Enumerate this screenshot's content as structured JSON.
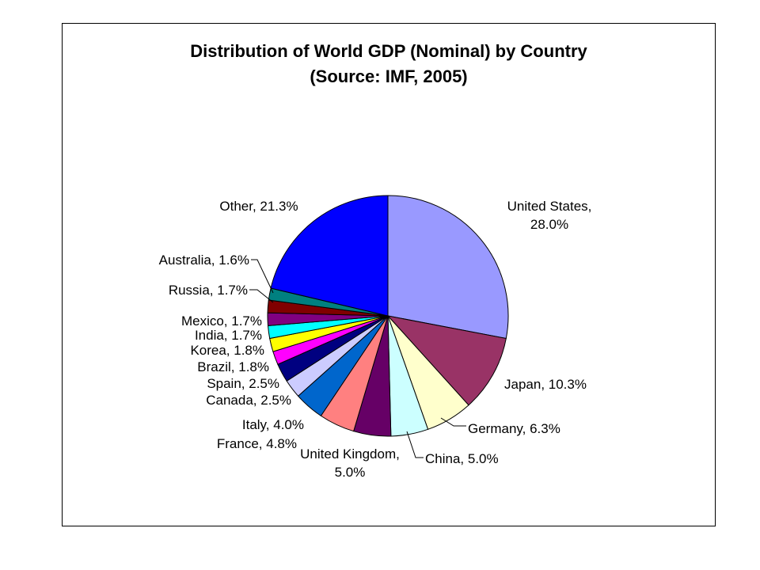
{
  "chart_data": {
    "type": "pie",
    "title": "Distribution of World GDP (Nominal) by Country",
    "subtitle": "(Source:  IMF, 2005)",
    "start_angle_deg": 0,
    "direction": "clockwise",
    "slices": [
      {
        "name": "United States",
        "value": 28.0,
        "label_lines": [
          "United States,",
          "28.0%"
        ],
        "color": "#9999ff"
      },
      {
        "name": "Japan",
        "value": 10.3,
        "label_lines": [
          "Japan, 10.3%"
        ],
        "color": "#993366"
      },
      {
        "name": "Germany",
        "value": 6.3,
        "label_lines": [
          "Germany, 6.3%"
        ],
        "color": "#ffffcc"
      },
      {
        "name": "China",
        "value": 5.0,
        "label_lines": [
          "China, 5.0%"
        ],
        "color": "#ccffff"
      },
      {
        "name": "United Kingdom",
        "value": 5.0,
        "label_lines": [
          "United Kingdom,",
          "5.0%"
        ],
        "color": "#660066"
      },
      {
        "name": "France",
        "value": 4.8,
        "label_lines": [
          "France, 4.8%"
        ],
        "color": "#ff8080"
      },
      {
        "name": "Italy",
        "value": 4.0,
        "label_lines": [
          "Italy, 4.0%"
        ],
        "color": "#0066cc"
      },
      {
        "name": "Canada",
        "value": 2.5,
        "label_lines": [
          "Canada, 2.5%"
        ],
        "color": "#ccccff"
      },
      {
        "name": "Spain",
        "value": 2.5,
        "label_lines": [
          "Spain, 2.5%"
        ],
        "color": "#000080"
      },
      {
        "name": "Brazil",
        "value": 1.8,
        "label_lines": [
          "Brazil, 1.8%"
        ],
        "color": "#ff00ff"
      },
      {
        "name": "Korea",
        "value": 1.8,
        "label_lines": [
          "Korea, 1.8%"
        ],
        "color": "#ffff00"
      },
      {
        "name": "India",
        "value": 1.7,
        "label_lines": [
          "India, 1.7%"
        ],
        "color": "#00ffff"
      },
      {
        "name": "Mexico",
        "value": 1.7,
        "label_lines": [
          "Mexico, 1.7%"
        ],
        "color": "#800080"
      },
      {
        "name": "Russia",
        "value": 1.7,
        "label_lines": [
          "Russia, 1.7%"
        ],
        "color": "#800000"
      },
      {
        "name": "Australia",
        "value": 1.6,
        "label_lines": [
          "Australia, 1.6%"
        ],
        "color": "#008080"
      },
      {
        "name": "Other",
        "value": 21.3,
        "label_lines": [
          "Other, 21.3%"
        ],
        "color": "#0000ff"
      }
    ]
  }
}
